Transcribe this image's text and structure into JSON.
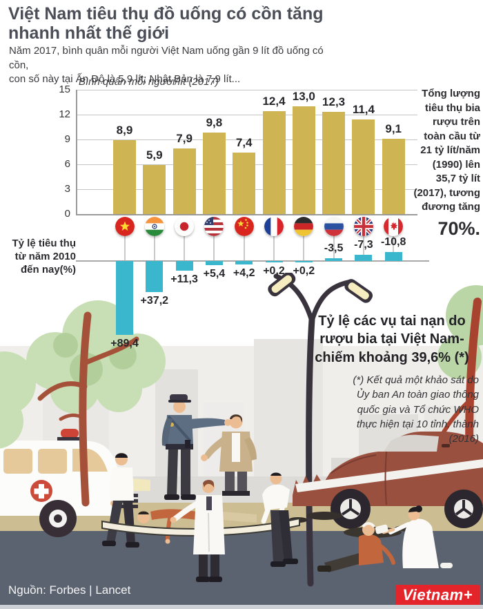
{
  "header": {
    "title": "Việt Nam tiêu thụ đồ uống có cồn tăng\nnhanh nhất thế giới",
    "subtitle": "Năm 2017, bình quân mỗi người Việt Nam uống gần 9 lít đồ uống có cồn,\ncon số này tại Ấn Độ là 5,9 lít; Nhật Bản là 7,9 lít..."
  },
  "chart_data": [
    {
      "type": "bar",
      "title": "Bình quân mỗi người/lít  (2017)",
      "categories": [
        "Việt Nam",
        "Ấn Độ",
        "Nhật Bản",
        "Mỹ",
        "Trung Quốc",
        "Pháp",
        "Đức",
        "Nga",
        "Anh",
        "Canada"
      ],
      "values": [
        8.9,
        5.9,
        7.9,
        9.8,
        7.4,
        12.4,
        13.0,
        12.3,
        11.4,
        9.1
      ],
      "labels": [
        "8,9",
        "5,9",
        "7,9",
        "9,8",
        "7,4",
        "12,4",
        "13,0",
        "12,3",
        "11,4",
        "9,1"
      ],
      "ylim": [
        0,
        15
      ],
      "yticks": [
        15,
        12,
        9,
        6,
        3,
        0
      ],
      "grid": true,
      "legend": "none",
      "bar_color": "#cfb453"
    },
    {
      "type": "bar",
      "title": "Tỷ lệ tiêu thụ\ntừ năm 2010\nđến nay(%)",
      "categories": [
        "Việt Nam",
        "Ấn Độ",
        "Nhật Bản",
        "Mỹ",
        "Trung Quốc",
        "Pháp",
        "Đức",
        "Nga",
        "Anh",
        "Canada"
      ],
      "values": [
        89.4,
        37.2,
        11.3,
        5.4,
        4.2,
        0.2,
        0.2,
        -3.5,
        -7.3,
        -10.8
      ],
      "labels": [
        "+89,4",
        "+37,2",
        "+11,3",
        "+5,4",
        "+4,2",
        "+0,2",
        "+0,2",
        "-3,5",
        "-7,3",
        "-10,8"
      ],
      "orientation": "positive values drawn downward from baseline",
      "legend": "none",
      "bar_color": "#3bb7cd"
    }
  ],
  "flags": [
    "vietnam",
    "india",
    "japan",
    "usa",
    "china",
    "france",
    "germany",
    "russia",
    "uk",
    "canada"
  ],
  "global_note": {
    "text": "Tổng lượng\ntiêu thụ bia\nrượu trên\ntoàn cầu từ\n21 tỷ lít/năm\n(1990) lên\n35,7 tỷ lít\n(2017), tương\nđương tăng",
    "emphasis": "70%."
  },
  "accident_note": {
    "heading": "Tỷ lệ các vụ tai nạn do\nrượu bia tại Việt Nam-\nchiếm khoảng 39,6% (*)",
    "footnote": "(*) Kết quả một khảo sát do\nỦy ban An toàn giao thông\nquốc gia và Tổ chức WHO\nthực hiện tại 10 tỉnh, thành\n(2016)"
  },
  "footer": {
    "source": "Nguồn: Forbes  |  Lancet",
    "logo": "Vietnam+"
  },
  "colors": {
    "bar_gold": "#cfb453",
    "bar_teal": "#3bb7cd",
    "title_gray": "#4b4e57",
    "logo_red": "#e3242b",
    "road_gray": "#5b6270"
  }
}
